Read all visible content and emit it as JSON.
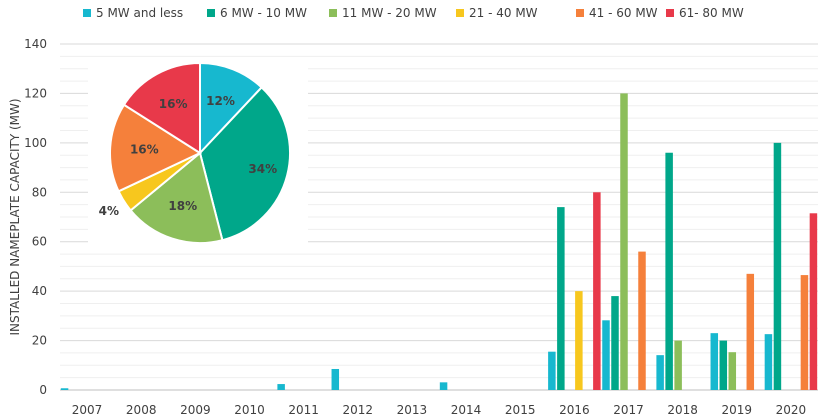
{
  "chart_data": [
    {
      "type": "bar",
      "ylabel": "INSTALLED NAMEPLATE CAPACITY (MW)",
      "xlabel": "",
      "ylim": [
        0,
        140
      ],
      "yticks": [
        0,
        20,
        40,
        60,
        80,
        100,
        120,
        140
      ],
      "grid": true,
      "legend_position": "top",
      "categories": [
        "2007",
        "2008",
        "2009",
        "2010",
        "2011",
        "2012",
        "2013",
        "2014",
        "2015",
        "2016",
        "2017",
        "2018",
        "2019",
        "2020"
      ],
      "series": [
        {
          "name": "5 MW and less",
          "color": "#17b8cf",
          "values": [
            0.7,
            0,
            0,
            0,
            2.4,
            8.5,
            0,
            3.1,
            0,
            15.5,
            28.2,
            14.1,
            23.0,
            22.6
          ]
        },
        {
          "name": "6 MW - 10 MW",
          "color": "#00a78a",
          "values": [
            0,
            0,
            0,
            0,
            0,
            0,
            0,
            0,
            0,
            74,
            38,
            96,
            20,
            100
          ]
        },
        {
          "name": "11 MW - 20 MW",
          "color": "#8cbe5a",
          "values": [
            0,
            0,
            0,
            0,
            0,
            0,
            0,
            0,
            0,
            0,
            120,
            20,
            15.3,
            0
          ]
        },
        {
          "name": "21 - 40 MW",
          "color": "#f7c71e",
          "values": [
            0,
            0,
            0,
            0,
            0,
            0,
            0,
            0,
            0,
            40,
            0,
            0,
            0,
            0
          ]
        },
        {
          "name": "41 - 60 MW",
          "color": "#f5803b",
          "values": [
            0,
            0,
            0,
            0,
            0,
            0,
            0,
            0,
            0,
            0,
            56,
            0,
            47,
            46.5
          ]
        },
        {
          "name": "61- 80 MW",
          "color": "#e8394a",
          "values": [
            0,
            0,
            0,
            0,
            0,
            0,
            0,
            0,
            0,
            80,
            0,
            0,
            0,
            71.5
          ]
        }
      ]
    },
    {
      "type": "pie",
      "slices": [
        {
          "label": "12%",
          "value": 12,
          "color": "#17b8cf"
        },
        {
          "label": "34%",
          "value": 34,
          "color": "#00a78a"
        },
        {
          "label": "18%",
          "value": 18,
          "color": "#8cbe5a"
        },
        {
          "label": "4%",
          "value": 4,
          "color": "#f7c71e"
        },
        {
          "label": "16%",
          "value": 16,
          "color": "#f5803b"
        },
        {
          "label": "16%",
          "value": 16,
          "color": "#e8394a"
        }
      ]
    }
  ]
}
